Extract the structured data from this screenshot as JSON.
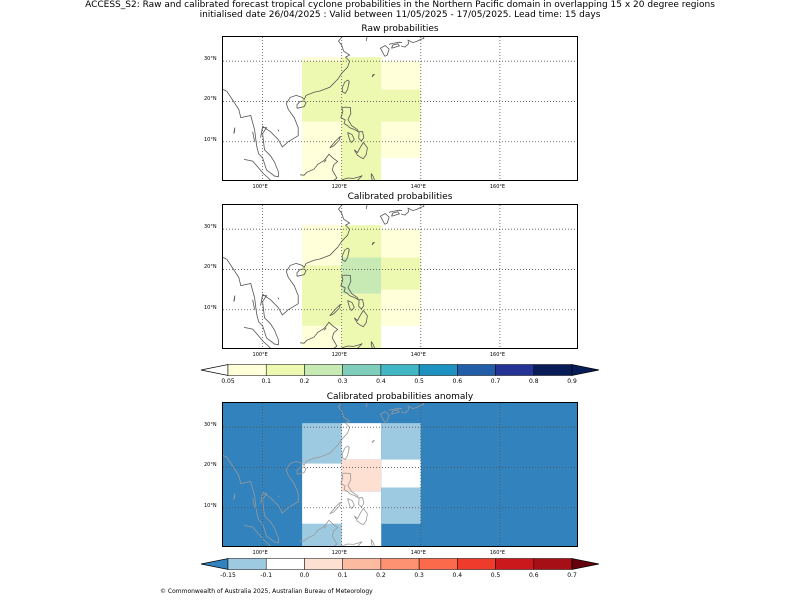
{
  "header": {
    "line1": "ACCESS_S2: Raw and calibrated forecast tropical cyclone probabilities in the Northern Pacific domain in overlapping 15 x 20 degree regions",
    "line2": "initialised date 26/04/2025 :  Valid between 11/05/2025 - 17/05/2025. Lead time: 15 days"
  },
  "map_axes": {
    "lon_range": [
      90,
      180
    ],
    "lat_range": [
      0,
      36
    ],
    "lon_ticks": [
      {
        "value": 100,
        "label": "100°E"
      },
      {
        "value": 120,
        "label": "120°E"
      },
      {
        "value": 140,
        "label": "140°E"
      },
      {
        "value": 160,
        "label": "160°E"
      }
    ],
    "lat_ticks": [
      {
        "value": 10,
        "label": "10°N"
      },
      {
        "value": 20,
        "label": "20°N"
      },
      {
        "value": 30,
        "label": "30°N"
      }
    ]
  },
  "panels": [
    {
      "id": "raw",
      "title": "Raw probabilities",
      "background": "#ffffff",
      "coast_color": "#555555",
      "cells": [
        {
          "lon": [
            110,
            120
          ],
          "lat": [
            0,
            6
          ],
          "color": "#ffffd9"
        },
        {
          "lon": [
            110,
            120
          ],
          "lat": [
            6,
            15
          ],
          "color": "#ffffd9"
        },
        {
          "lon": [
            110,
            120
          ],
          "lat": [
            15,
            21
          ],
          "color": "#edf8b1"
        },
        {
          "lon": [
            110,
            120
          ],
          "lat": [
            21,
            30
          ],
          "color": "#edf8b1"
        },
        {
          "lon": [
            110,
            120
          ],
          "lat": [
            30,
            31
          ],
          "color": "#ffffd9"
        },
        {
          "lon": [
            120,
            130
          ],
          "lat": [
            0,
            6
          ],
          "color": "#edf8b1"
        },
        {
          "lon": [
            120,
            130
          ],
          "lat": [
            6,
            31
          ],
          "color": "#edf8b1"
        },
        {
          "lon": [
            130,
            140
          ],
          "lat": [
            6,
            15
          ],
          "color": "#ffffd9"
        },
        {
          "lon": [
            130,
            140
          ],
          "lat": [
            15,
            23
          ],
          "color": "#edf8b1"
        },
        {
          "lon": [
            130,
            140
          ],
          "lat": [
            23,
            30
          ],
          "color": "#ffffd9"
        }
      ]
    },
    {
      "id": "calibrated",
      "title": "Calibrated probabilities",
      "background": "#ffffff",
      "coast_color": "#555555",
      "cells": [
        {
          "lon": [
            110,
            120
          ],
          "lat": [
            0,
            6
          ],
          "color": "#ffffd9"
        },
        {
          "lon": [
            110,
            120
          ],
          "lat": [
            6,
            21
          ],
          "color": "#edf8b1"
        },
        {
          "lon": [
            110,
            120
          ],
          "lat": [
            21,
            31
          ],
          "color": "#ffffd9"
        },
        {
          "lon": [
            120,
            130
          ],
          "lat": [
            0,
            6
          ],
          "color": "#edf8b1"
        },
        {
          "lon": [
            120,
            130
          ],
          "lat": [
            6,
            14
          ],
          "color": "#edf8b1"
        },
        {
          "lon": [
            120,
            130
          ],
          "lat": [
            14,
            23
          ],
          "color": "#c7e9b4"
        },
        {
          "lon": [
            120,
            130
          ],
          "lat": [
            23,
            31
          ],
          "color": "#edf8b1"
        },
        {
          "lon": [
            130,
            140
          ],
          "lat": [
            6,
            15
          ],
          "color": "#ffffd9"
        },
        {
          "lon": [
            130,
            140
          ],
          "lat": [
            15,
            23
          ],
          "color": "#edf8b1"
        },
        {
          "lon": [
            130,
            140
          ],
          "lat": [
            23,
            30
          ],
          "color": "#ffffd9"
        }
      ]
    },
    {
      "id": "anomaly",
      "title": "Calibrated probabilities anomaly",
      "background": "#3182bd",
      "coast_color": "#999999",
      "cells": [
        {
          "lon": [
            110,
            120
          ],
          "lat": [
            0,
            6
          ],
          "color": "#9ecae1"
        },
        {
          "lon": [
            110,
            120
          ],
          "lat": [
            6,
            21
          ],
          "color": "#ffffff"
        },
        {
          "lon": [
            110,
            120
          ],
          "lat": [
            21,
            31
          ],
          "color": "#9ecae1"
        },
        {
          "lon": [
            120,
            130
          ],
          "lat": [
            0,
            14
          ],
          "color": "#ffffff"
        },
        {
          "lon": [
            120,
            130
          ],
          "lat": [
            14,
            22
          ],
          "color": "#fee0d2"
        },
        {
          "lon": [
            120,
            130
          ],
          "lat": [
            22,
            31
          ],
          "color": "#ffffff"
        },
        {
          "lon": [
            130,
            140
          ],
          "lat": [
            6,
            15
          ],
          "color": "#9ecae1"
        },
        {
          "lon": [
            130,
            140
          ],
          "lat": [
            15,
            22
          ],
          "color": "#ffffff"
        },
        {
          "lon": [
            130,
            140
          ],
          "lat": [
            22,
            31
          ],
          "color": "#9ecae1"
        }
      ]
    }
  ],
  "colorbars": [
    {
      "id": "probability",
      "colors": [
        "#ffffd9",
        "#edf8b1",
        "#c7e9b4",
        "#7fcdbb",
        "#41b6c4",
        "#1d91c0",
        "#225ea8",
        "#253494",
        "#081d58"
      ],
      "under_color": "#ffffff",
      "over_color": "#081d58",
      "labels": [
        "0.05",
        "0.1",
        "0.2",
        "0.3",
        "0.4",
        "0.5",
        "0.6",
        "0.7",
        "0.8",
        "0.9"
      ]
    },
    {
      "id": "anomaly",
      "colors": [
        "#9ecae1",
        "#ffffff",
        "#fee0d2",
        "#fcbba1",
        "#fc9272",
        "#fb6a4a",
        "#ef3b2c",
        "#cb181d",
        "#a50f15"
      ],
      "under_color": "#3182bd",
      "over_color": "#67000d",
      "labels": [
        "-0.15",
        "-0.1",
        "0.0",
        "0.1",
        "0.2",
        "0.3",
        "0.4",
        "0.5",
        "0.6",
        "0.7"
      ]
    }
  ],
  "footer": {
    "copyright": "© Commonwealth of Australia 2025, Australian Bureau of Meteorology"
  }
}
